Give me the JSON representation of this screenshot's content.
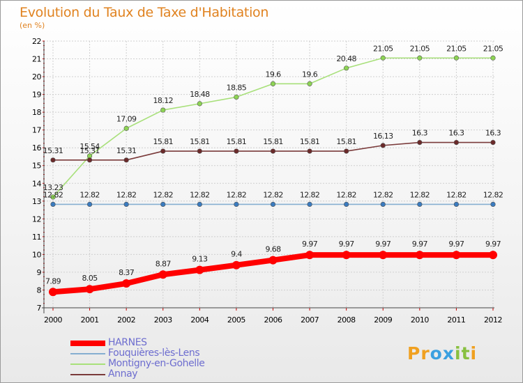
{
  "title": "Evolution du Taux de Taxe d'Habitation",
  "unit_label": "(en %)",
  "logo": {
    "text": "Proxiti",
    "letters": [
      "P",
      "r",
      "o",
      "x",
      "i",
      "t",
      "i"
    ],
    "colors": [
      "#f0a020",
      "#f0a020",
      "#3aa0e0",
      "#3aa0e0",
      "#88c040",
      "#88c040",
      "#f0a020"
    ]
  },
  "chart_data": {
    "type": "line",
    "title": "Evolution du Taux de Taxe d'Habitation",
    "ylabel": "(en %)",
    "xlabel": "",
    "x": [
      "2000",
      "2001",
      "2002",
      "2003",
      "2004",
      "2005",
      "2006",
      "2007",
      "2008",
      "2009",
      "2010",
      "2011",
      "2012"
    ],
    "ylim": [
      7,
      22
    ],
    "yticks": [
      "7",
      "8",
      "9",
      "10",
      "11",
      "12",
      "13",
      "14",
      "15",
      "16",
      "17",
      "18",
      "19",
      "20",
      "21",
      "22"
    ],
    "grid": "horizontal",
    "legend_position": "bottom-left",
    "series": [
      {
        "name": "HARNES",
        "color": "#ff0000",
        "marker": "#ff0000",
        "values": [
          7.89,
          8.05,
          8.37,
          8.87,
          9.13,
          9.4,
          9.68,
          9.97,
          9.97,
          9.97,
          9.97,
          9.97,
          9.97
        ],
        "labels": [
          "7.89",
          "8.05",
          "8.37",
          "8.87",
          "9.13",
          "9.4",
          "9.68",
          "9.97",
          "9.97",
          "9.97",
          "9.97",
          "9.97",
          "9.97"
        ]
      },
      {
        "name": "Fouquières-lès-Lens",
        "color": "#85aed0",
        "marker": "#3a7bbf",
        "values": [
          12.82,
          12.82,
          12.82,
          12.82,
          12.82,
          12.82,
          12.82,
          12.82,
          12.82,
          12.82,
          12.82,
          12.82,
          12.82
        ],
        "labels": [
          "12.82",
          "12.82",
          "12.82",
          "12.82",
          "12.82",
          "12.82",
          "12.82",
          "12.82",
          "12.82",
          "12.82",
          "12.82",
          "12.82",
          "12.82"
        ]
      },
      {
        "name": "Montigny-en-Gohelle",
        "color": "#a8e07a",
        "marker": "#8dd454",
        "values": [
          13.23,
          15.54,
          17.09,
          18.12,
          18.48,
          18.85,
          19.6,
          19.6,
          20.48,
          21.05,
          21.05,
          21.05,
          21.05
        ],
        "labels": [
          "13.23",
          "15.54",
          "17.09",
          "18.12",
          "18.48",
          "18.85",
          "19.6",
          "19.6",
          "20.48",
          "21.05",
          "21.05",
          "21.05",
          "21.05"
        ]
      },
      {
        "name": "Annay",
        "color": "#7a3a3a",
        "marker": "#6b2a2a",
        "values": [
          15.31,
          15.31,
          15.31,
          15.81,
          15.81,
          15.81,
          15.81,
          15.81,
          15.81,
          16.13,
          16.3,
          16.3,
          16.3
        ],
        "labels": [
          "15.31",
          "15.31",
          "15.31",
          "15.81",
          "15.81",
          "15.81",
          "15.81",
          "15.81",
          "15.81",
          "16.13",
          "16.3",
          "16.3",
          "16.3"
        ]
      }
    ]
  }
}
